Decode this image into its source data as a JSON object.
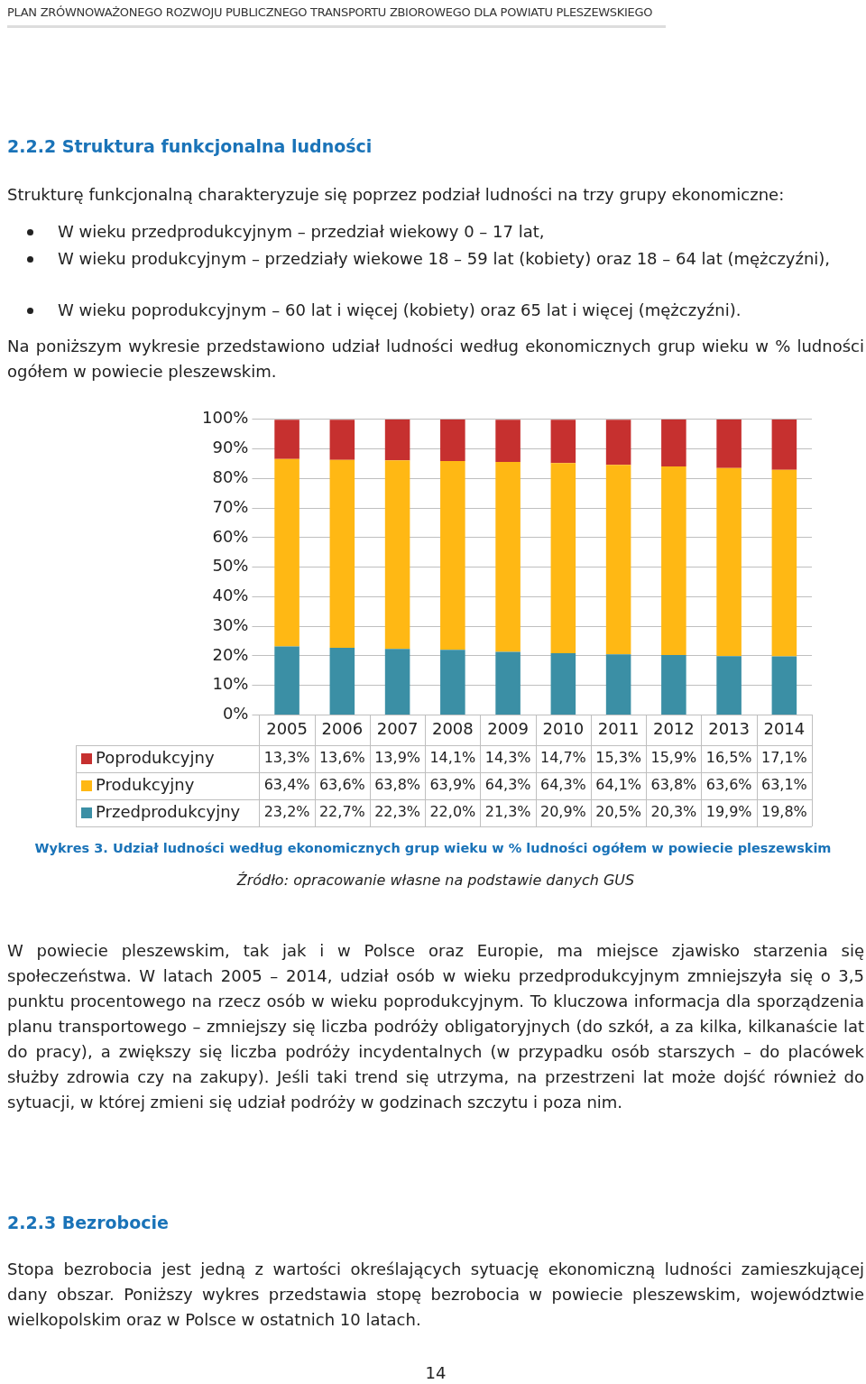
{
  "chart_data": {
    "type": "bar",
    "stacked": true,
    "title": "Wykres 3. Udział ludności według ekonomicznych grup wieku w % ludności ogółem w powiecie pleszewskim",
    "categories": [
      "2005",
      "2006",
      "2007",
      "2008",
      "2009",
      "2010",
      "2011",
      "2012",
      "2013",
      "2014"
    ],
    "series": [
      {
        "name": "Przedprodukcyjny",
        "color": "#3b8fa5",
        "values": [
          23.2,
          22.7,
          22.3,
          22.0,
          21.3,
          20.9,
          20.5,
          20.3,
          19.9,
          19.8
        ],
        "value_labels": [
          "23,2%",
          "22,7%",
          "22,3%",
          "22,0%",
          "21,3%",
          "20,9%",
          "20,5%",
          "20,3%",
          "19,9%",
          "19,8%"
        ]
      },
      {
        "name": "Produkcyjny",
        "color": "#ffb814",
        "values": [
          63.4,
          63.6,
          63.8,
          63.9,
          64.3,
          64.3,
          64.1,
          63.8,
          63.6,
          63.1
        ],
        "value_labels": [
          "63,4%",
          "63,6%",
          "63,8%",
          "63,9%",
          "64,3%",
          "64,3%",
          "64,1%",
          "63,8%",
          "63,6%",
          "63,1%"
        ]
      },
      {
        "name": "Poprodukcyjny",
        "color": "#c6302f",
        "values": [
          13.3,
          13.6,
          13.9,
          14.1,
          14.3,
          14.7,
          15.3,
          15.9,
          16.5,
          17.1
        ],
        "value_labels": [
          "13,3%",
          "13,6%",
          "13,9%",
          "14,1%",
          "14,3%",
          "14,7%",
          "15,3%",
          "15,9%",
          "16,5%",
          "17,1%"
        ]
      }
    ],
    "ylim": [
      0,
      100
    ],
    "yticks": [
      {
        "value": 0,
        "label": "0%"
      },
      {
        "value": 10,
        "label": "10%"
      },
      {
        "value": 20,
        "label": "20%"
      },
      {
        "value": 30,
        "label": "30%"
      },
      {
        "value": 40,
        "label": "40%"
      },
      {
        "value": 50,
        "label": "50%"
      },
      {
        "value": 60,
        "label": "60%"
      },
      {
        "value": 70,
        "label": "70%"
      },
      {
        "value": 80,
        "label": "80%"
      },
      {
        "value": 90,
        "label": "90%"
      },
      {
        "value": 100,
        "label": "100%"
      }
    ],
    "grid": "y",
    "legend": "bottom left",
    "annotations": [
      "PLAN ZRÓWNOWAŻONEGO ROZWOJU PUBLICZNEGO TRANSPORTU ZBIOROWEGO DLA POWIATU PLESZEWSKIEGO",
      "2.2.2 Struktura funkcjonalna ludności",
      "Strukturę funkcjonalną charakteryzuje się poprzez podział ludności na trzy grupy ekonomiczne:",
      "W wieku przedprodukcyjnym – przedział wiekowy 0 – 17 lat,",
      "W wieku produkcyjnym – przedziały wiekowe 18 – 59 lat (kobiety) oraz 18 – 64 lat (mężczyźni),",
      "W wieku poprodukcyjnym – 60 lat i więcej (kobiety) oraz 65 lat i więcej (mężczyźni).",
      "Na poniższym wykresie przedstawiono udział ludności według ekonomicznych grup wieku w % ludności ogółem w powiecie pleszewskim.",
      "Źródło: opracowanie własne na podstawie danych GUS",
      "W powiecie pleszewskim, tak jak i w Polsce oraz Europie, ma miejsce zjawisko starzenia się społeczeństwa. W latach 2005 – 2014, udział osób w wieku przedprodukcyjnym zmniejszyła się o 3,5 punktu procentowego na rzecz osób w wieku poprodukcyjnym. To kluczowa informacja dla sporządzenia planu transportowego – zmniejszy się liczba podróży obligatoryjnych (do szkół, a za kilka, kilkanaście lat do pracy), a zwiększy się liczba podróży incydentalnych (w przypadku osób starszych – do placówek służby zdrowia czy na zakupy). Jeśli taki trend się utrzyma, na przestrzeni lat może dojść również do sytuacji, w której zmieni się udział podróży w godzinach szczytu i poza nim.",
      "2.2.3 Bezrobocie",
      "Stopa bezrobocia jest jedną z wartości określających sytuację ekonomiczną ludności zamieszkującej dany obszar. Poniższy wykres przedstawia stopę bezrobocia w powiecie pleszewskim, województwie wielkopolskim oraz w Polsce w ostatnich 10 latach.",
      "14"
    ]
  }
}
